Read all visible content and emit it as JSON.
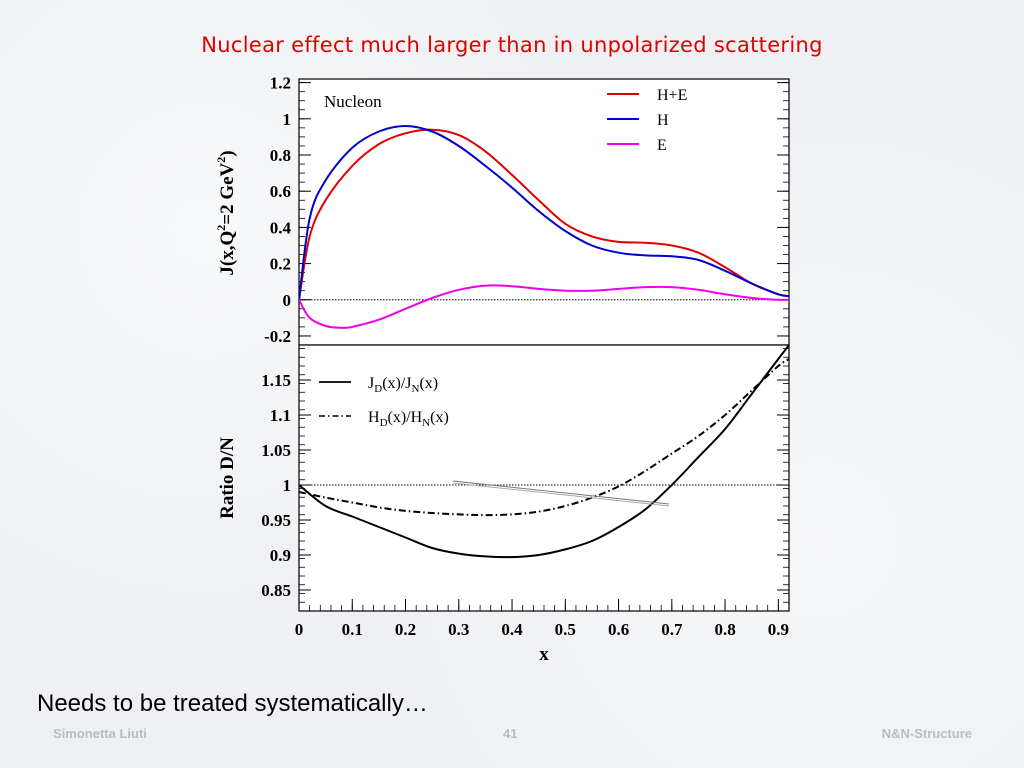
{
  "slide": {
    "title": "Nuclear effect much larger than in unpolarized scattering",
    "note": "Needs to be treated systematically…",
    "footer_left": "Simonetta Liuti",
    "footer_page": "41",
    "footer_right": "N&N-Structure"
  },
  "colors": {
    "title": "#e00000",
    "he": "#e00000",
    "h": "#0000d0",
    "e": "#ee00ee",
    "ratio": "#000000"
  },
  "chart_data": [
    {
      "type": "line",
      "panel": "top",
      "label": "Nucleon",
      "ylabel": "J(x,Q²=2 GeV²)",
      "ylabel_parts": {
        "main": "J(x,Q",
        "sup1": "2",
        "mid": "=2 GeV",
        "sup2": "2",
        "end": ")"
      },
      "xlim": [
        0,
        0.92
      ],
      "ylim": [
        -0.25,
        1.22
      ],
      "yticks": [
        "1.2",
        "1",
        "0.8",
        "0.6",
        "0.4",
        "0.2",
        "0",
        "-0.2"
      ],
      "ytick_values": [
        1.2,
        1.0,
        0.8,
        0.6,
        0.4,
        0.2,
        0.0,
        -0.2
      ],
      "reference_line_y": 0,
      "legend_position": "top-right",
      "series": [
        {
          "name": "H+E",
          "color": "#e00000",
          "style": "solid",
          "x": [
            0,
            0.02,
            0.05,
            0.1,
            0.15,
            0.2,
            0.25,
            0.3,
            0.35,
            0.4,
            0.45,
            0.5,
            0.55,
            0.6,
            0.65,
            0.7,
            0.75,
            0.8,
            0.85,
            0.9,
            0.92
          ],
          "y": [
            0.0,
            0.35,
            0.55,
            0.74,
            0.86,
            0.92,
            0.94,
            0.91,
            0.82,
            0.69,
            0.55,
            0.42,
            0.35,
            0.32,
            0.315,
            0.3,
            0.26,
            0.18,
            0.09,
            0.03,
            0.02
          ]
        },
        {
          "name": "H",
          "color": "#0000d0",
          "style": "solid",
          "x": [
            0,
            0.02,
            0.05,
            0.1,
            0.15,
            0.2,
            0.25,
            0.3,
            0.35,
            0.4,
            0.45,
            0.5,
            0.55,
            0.6,
            0.65,
            0.7,
            0.75,
            0.8,
            0.85,
            0.9,
            0.92
          ],
          "y": [
            0.0,
            0.45,
            0.66,
            0.84,
            0.93,
            0.96,
            0.93,
            0.85,
            0.74,
            0.62,
            0.49,
            0.38,
            0.3,
            0.26,
            0.245,
            0.24,
            0.22,
            0.16,
            0.09,
            0.03,
            0.02
          ]
        },
        {
          "name": "E",
          "color": "#ee00ee",
          "style": "solid",
          "x": [
            0,
            0.02,
            0.05,
            0.08,
            0.1,
            0.15,
            0.2,
            0.25,
            0.3,
            0.35,
            0.4,
            0.45,
            0.5,
            0.55,
            0.6,
            0.65,
            0.7,
            0.75,
            0.8,
            0.85,
            0.9,
            0.92
          ],
          "y": [
            0.0,
            -0.1,
            -0.145,
            -0.155,
            -0.15,
            -0.11,
            -0.05,
            0.01,
            0.055,
            0.078,
            0.075,
            0.06,
            0.05,
            0.05,
            0.06,
            0.07,
            0.07,
            0.055,
            0.03,
            0.01,
            0.0,
            0.0
          ]
        }
      ]
    },
    {
      "type": "line",
      "panel": "bottom",
      "ylabel": "Ratio D/N",
      "xlabel": "x",
      "xlim": [
        0,
        0.92
      ],
      "ylim": [
        0.82,
        1.2
      ],
      "xticks": [
        "0",
        "0.1",
        "0.2",
        "0.3",
        "0.4",
        "0.5",
        "0.6",
        "0.7",
        "0.8",
        "0.9"
      ],
      "xtick_values": [
        0,
        0.1,
        0.2,
        0.3,
        0.4,
        0.5,
        0.6,
        0.7,
        0.8,
        0.9
      ],
      "yticks": [
        "1.15",
        "1.1",
        "1.05",
        "1",
        "0.95",
        "0.9",
        "0.85"
      ],
      "ytick_values": [
        1.15,
        1.1,
        1.05,
        1.0,
        0.95,
        0.9,
        0.85
      ],
      "reference_line_y": 1.0,
      "legend_position": "top-left",
      "series": [
        {
          "name": "JD(x)/JN(x)",
          "label_parts": {
            "a": "J",
            "a_sub": "D",
            "b": "(x)/J",
            "b_sub": "N",
            "c": "(x)"
          },
          "color": "#000000",
          "style": "solid",
          "x": [
            0,
            0.05,
            0.1,
            0.15,
            0.2,
            0.25,
            0.3,
            0.35,
            0.4,
            0.45,
            0.5,
            0.55,
            0.6,
            0.65,
            0.7,
            0.75,
            0.8,
            0.85,
            0.9,
            0.92
          ],
          "y": [
            1.0,
            0.97,
            0.955,
            0.94,
            0.925,
            0.91,
            0.902,
            0.898,
            0.897,
            0.9,
            0.908,
            0.92,
            0.94,
            0.965,
            1.0,
            1.04,
            1.08,
            1.13,
            1.18,
            1.2
          ]
        },
        {
          "name": "HD(x)/HN(x)",
          "label_parts": {
            "a": "H",
            "a_sub": "D",
            "b": "(x)/H",
            "b_sub": "N",
            "c": "(x)"
          },
          "color": "#000000",
          "style": "dashdot",
          "x": [
            0,
            0.05,
            0.1,
            0.15,
            0.2,
            0.25,
            0.3,
            0.35,
            0.4,
            0.45,
            0.5,
            0.55,
            0.6,
            0.65,
            0.7,
            0.75,
            0.8,
            0.85,
            0.9,
            0.92
          ],
          "y": [
            0.99,
            0.982,
            0.975,
            0.968,
            0.963,
            0.96,
            0.958,
            0.957,
            0.958,
            0.962,
            0.97,
            0.982,
            0.998,
            1.02,
            1.045,
            1.07,
            1.1,
            1.135,
            1.17,
            1.18
          ]
        }
      ]
    }
  ]
}
